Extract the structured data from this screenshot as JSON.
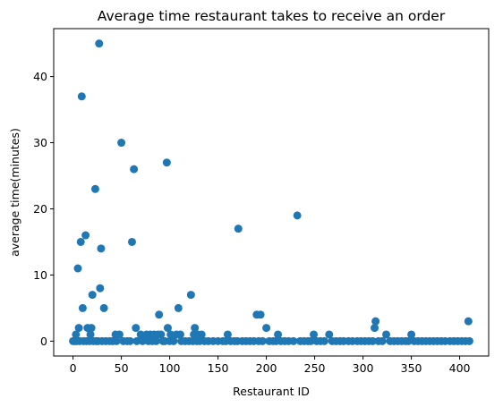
{
  "chart_data": {
    "type": "scatter",
    "title": "Average time restaurant takes to receive an order",
    "xlabel": "Restaurant ID",
    "ylabel": "average time(minutes)",
    "xlim": [
      -20,
      430
    ],
    "ylim": [
      -2.25,
      47.25
    ],
    "xticks": [
      0,
      50,
      100,
      150,
      200,
      250,
      300,
      350,
      400
    ],
    "yticks": [
      0,
      10,
      20,
      30,
      40
    ],
    "grid": false,
    "marker_color": "#1f77b4",
    "points": [
      {
        "x": 27,
        "y": 45
      },
      {
        "x": 9,
        "y": 37
      },
      {
        "x": 50,
        "y": 30
      },
      {
        "x": 97,
        "y": 27
      },
      {
        "x": 63,
        "y": 26
      },
      {
        "x": 23,
        "y": 23
      },
      {
        "x": 232,
        "y": 19
      },
      {
        "x": 171,
        "y": 17
      },
      {
        "x": 13,
        "y": 16
      },
      {
        "x": 8,
        "y": 15
      },
      {
        "x": 61,
        "y": 15
      },
      {
        "x": 29,
        "y": 14
      },
      {
        "x": 5,
        "y": 11
      },
      {
        "x": 28,
        "y": 8
      },
      {
        "x": 20,
        "y": 7
      },
      {
        "x": 122,
        "y": 7
      },
      {
        "x": 10,
        "y": 5
      },
      {
        "x": 32,
        "y": 5
      },
      {
        "x": 109,
        "y": 5
      },
      {
        "x": 89,
        "y": 4
      },
      {
        "x": 190,
        "y": 4
      },
      {
        "x": 194,
        "y": 4
      },
      {
        "x": 313,
        "y": 3
      },
      {
        "x": 409,
        "y": 3
      },
      {
        "x": 6,
        "y": 2
      },
      {
        "x": 15,
        "y": 2
      },
      {
        "x": 19,
        "y": 2
      },
      {
        "x": 65,
        "y": 2
      },
      {
        "x": 98,
        "y": 2
      },
      {
        "x": 126,
        "y": 2
      },
      {
        "x": 200,
        "y": 2
      },
      {
        "x": 312,
        "y": 2
      },
      {
        "x": 3,
        "y": 1
      },
      {
        "x": 18,
        "y": 1
      },
      {
        "x": 44,
        "y": 1
      },
      {
        "x": 48,
        "y": 1
      },
      {
        "x": 70,
        "y": 1
      },
      {
        "x": 76,
        "y": 1
      },
      {
        "x": 80,
        "y": 1
      },
      {
        "x": 84,
        "y": 1
      },
      {
        "x": 88,
        "y": 1
      },
      {
        "x": 91,
        "y": 1
      },
      {
        "x": 101,
        "y": 1
      },
      {
        "x": 107,
        "y": 1
      },
      {
        "x": 111,
        "y": 1
      },
      {
        "x": 125,
        "y": 1
      },
      {
        "x": 129,
        "y": 1
      },
      {
        "x": 133,
        "y": 1
      },
      {
        "x": 160,
        "y": 1
      },
      {
        "x": 212,
        "y": 1
      },
      {
        "x": 249,
        "y": 1
      },
      {
        "x": 265,
        "y": 1
      },
      {
        "x": 324,
        "y": 1
      },
      {
        "x": 350,
        "y": 1
      },
      {
        "x": 0,
        "y": 0
      },
      {
        "x": 2,
        "y": 0
      },
      {
        "x": 4,
        "y": 0
      },
      {
        "x": 7,
        "y": 0
      },
      {
        "x": 11,
        "y": 0
      },
      {
        "x": 14,
        "y": 0
      },
      {
        "x": 17,
        "y": 0
      },
      {
        "x": 21,
        "y": 0
      },
      {
        "x": 24,
        "y": 0
      },
      {
        "x": 26,
        "y": 0
      },
      {
        "x": 30,
        "y": 0
      },
      {
        "x": 34,
        "y": 0
      },
      {
        "x": 38,
        "y": 0
      },
      {
        "x": 41,
        "y": 0
      },
      {
        "x": 45,
        "y": 0
      },
      {
        "x": 52,
        "y": 0
      },
      {
        "x": 56,
        "y": 0
      },
      {
        "x": 59,
        "y": 0
      },
      {
        "x": 66,
        "y": 0
      },
      {
        "x": 72,
        "y": 0
      },
      {
        "x": 78,
        "y": 0
      },
      {
        "x": 82,
        "y": 0
      },
      {
        "x": 86,
        "y": 0
      },
      {
        "x": 93,
        "y": 0
      },
      {
        "x": 95,
        "y": 0
      },
      {
        "x": 100,
        "y": 0
      },
      {
        "x": 104,
        "y": 0
      },
      {
        "x": 112,
        "y": 0
      },
      {
        "x": 116,
        "y": 0
      },
      {
        "x": 120,
        "y": 0
      },
      {
        "x": 124,
        "y": 0
      },
      {
        "x": 128,
        "y": 0
      },
      {
        "x": 131,
        "y": 0
      },
      {
        "x": 136,
        "y": 0
      },
      {
        "x": 140,
        "y": 0
      },
      {
        "x": 145,
        "y": 0
      },
      {
        "x": 150,
        "y": 0
      },
      {
        "x": 155,
        "y": 0
      },
      {
        "x": 158,
        "y": 0
      },
      {
        "x": 163,
        "y": 0
      },
      {
        "x": 167,
        "y": 0
      },
      {
        "x": 170,
        "y": 0
      },
      {
        "x": 175,
        "y": 0
      },
      {
        "x": 179,
        "y": 0
      },
      {
        "x": 183,
        "y": 0
      },
      {
        "x": 187,
        "y": 0
      },
      {
        "x": 192,
        "y": 0
      },
      {
        "x": 196,
        "y": 0
      },
      {
        "x": 203,
        "y": 0
      },
      {
        "x": 207,
        "y": 0
      },
      {
        "x": 210,
        "y": 0
      },
      {
        "x": 215,
        "y": 0
      },
      {
        "x": 219,
        "y": 0
      },
      {
        "x": 223,
        "y": 0
      },
      {
        "x": 228,
        "y": 0
      },
      {
        "x": 235,
        "y": 0
      },
      {
        "x": 239,
        "y": 0
      },
      {
        "x": 243,
        "y": 0
      },
      {
        "x": 246,
        "y": 0
      },
      {
        "x": 252,
        "y": 0
      },
      {
        "x": 256,
        "y": 0
      },
      {
        "x": 260,
        "y": 0
      },
      {
        "x": 268,
        "y": 0
      },
      {
        "x": 272,
        "y": 0
      },
      {
        "x": 276,
        "y": 0
      },
      {
        "x": 280,
        "y": 0
      },
      {
        "x": 285,
        "y": 0
      },
      {
        "x": 289,
        "y": 0
      },
      {
        "x": 294,
        "y": 0
      },
      {
        "x": 298,
        "y": 0
      },
      {
        "x": 302,
        "y": 0
      },
      {
        "x": 306,
        "y": 0
      },
      {
        "x": 310,
        "y": 0
      },
      {
        "x": 316,
        "y": 0
      },
      {
        "x": 320,
        "y": 0
      },
      {
        "x": 328,
        "y": 0
      },
      {
        "x": 332,
        "y": 0
      },
      {
        "x": 336,
        "y": 0
      },
      {
        "x": 340,
        "y": 0
      },
      {
        "x": 344,
        "y": 0
      },
      {
        "x": 347,
        "y": 0
      },
      {
        "x": 353,
        "y": 0
      },
      {
        "x": 357,
        "y": 0
      },
      {
        "x": 361,
        "y": 0
      },
      {
        "x": 365,
        "y": 0
      },
      {
        "x": 369,
        "y": 0
      },
      {
        "x": 373,
        "y": 0
      },
      {
        "x": 377,
        "y": 0
      },
      {
        "x": 381,
        "y": 0
      },
      {
        "x": 385,
        "y": 0
      },
      {
        "x": 390,
        "y": 0
      },
      {
        "x": 394,
        "y": 0
      },
      {
        "x": 398,
        "y": 0
      },
      {
        "x": 402,
        "y": 0
      },
      {
        "x": 406,
        "y": 0
      },
      {
        "x": 410,
        "y": 0
      }
    ]
  }
}
